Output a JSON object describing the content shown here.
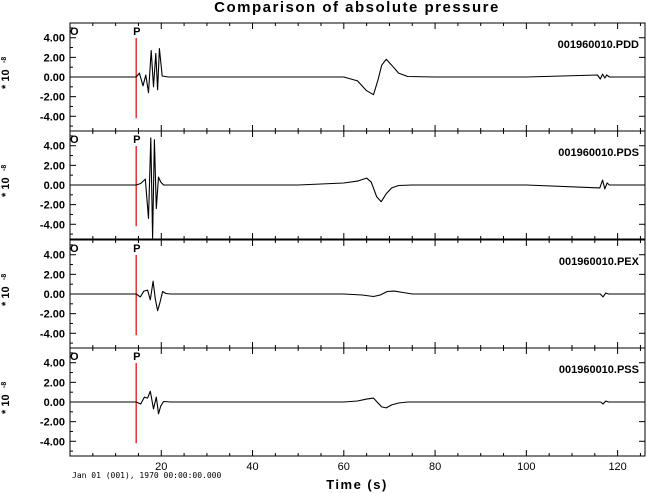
{
  "chart_data": {
    "type": "line",
    "title": "Comparison of absolute pressure",
    "xlabel": "Time (s)",
    "xlim": [
      0,
      126
    ],
    "x_ticks": [
      20,
      40,
      60,
      80,
      100,
      120
    ],
    "x_tick_labels": [
      "20",
      "40",
      "60",
      "80",
      "100",
      "120"
    ],
    "date_label": "Jan 01 (001), 1970 00:00:00.000",
    "ylabel": "* 10",
    "ylabel_exponent": "-8",
    "ylim": [
      -5.5,
      5.5
    ],
    "y_ticks": [
      4,
      2,
      0,
      -2,
      -4
    ],
    "y_tick_labels": [
      "4.00",
      "2.00",
      "0.00",
      "-2.00",
      "-4.00"
    ],
    "grid": false,
    "markers": [
      {
        "label": "O",
        "time": 0,
        "color": "#000000"
      },
      {
        "label": "P",
        "time": 14.5,
        "color": "#dd0000"
      }
    ],
    "panels": [
      {
        "name": "001960010.PDD",
        "x": [
          0,
          14.5,
          15.2,
          16.0,
          16.6,
          17.2,
          17.8,
          18.3,
          18.8,
          19.2,
          19.6,
          20.2,
          21.5,
          30,
          50,
          60,
          63,
          65,
          66.5,
          67.5,
          68.3,
          69.3,
          70.5,
          72,
          74,
          80,
          100,
          115.6,
          116.2,
          116.7,
          117.2,
          117.6,
          118.2,
          126
        ],
        "y": [
          0,
          0,
          0.4,
          -0.9,
          0.2,
          -1.6,
          2.7,
          -1.0,
          2.4,
          -1.3,
          2.9,
          0.1,
          0,
          0,
          0,
          0,
          -0.4,
          -1.4,
          -1.8,
          -0.3,
          1.2,
          1.8,
          1.2,
          0.4,
          0.05,
          0,
          0,
          0.2,
          -0.2,
          0.3,
          -0.1,
          0.2,
          0,
          0
        ]
      },
      {
        "name": "001960010.PDS",
        "x": [
          0,
          14.5,
          15.5,
          16.5,
          17.2,
          17.7,
          18.1,
          18.5,
          18.9,
          19.4,
          19.9,
          20.5,
          22,
          30,
          50,
          60,
          63,
          65,
          66,
          67.2,
          68.2,
          69.3,
          70.5,
          72,
          75,
          80,
          100,
          116.1,
          116.7,
          117.2,
          117.7,
          118.2,
          126
        ],
        "y": [
          0,
          0,
          0.15,
          0.6,
          -3.4,
          4.8,
          -5.4,
          4.6,
          -2.4,
          0.8,
          0.3,
          0,
          0,
          0,
          0,
          0.2,
          0.4,
          0.7,
          0.3,
          -1.2,
          -1.7,
          -0.9,
          -0.3,
          -0.05,
          0,
          0,
          0,
          -0.3,
          0.5,
          -0.4,
          0.2,
          0,
          0
        ]
      },
      {
        "name": "001960010.PEX",
        "x": [
          0,
          14.5,
          15.4,
          16.2,
          17.0,
          17.6,
          18.2,
          18.7,
          19.2,
          19.7,
          20.3,
          21,
          22,
          30,
          50,
          60,
          64,
          66.5,
          68,
          69.5,
          71,
          73,
          75,
          80,
          100,
          116.2,
          116.8,
          117.4,
          118,
          126
        ],
        "y": [
          0,
          0,
          -0.3,
          0.3,
          0.4,
          -0.6,
          1.3,
          -0.5,
          -1.7,
          -0.9,
          0.25,
          0.05,
          0,
          0,
          0,
          0,
          -0.1,
          -0.25,
          -0.1,
          0.25,
          0.3,
          0.15,
          0,
          0,
          0,
          0,
          -0.3,
          0.1,
          0,
          0
        ]
      },
      {
        "name": "001960010.PSS",
        "x": [
          0,
          14.5,
          15.5,
          16.3,
          17.0,
          17.6,
          18.3,
          18.9,
          19.4,
          19.9,
          20.5,
          22,
          30,
          50,
          60,
          63,
          65,
          66.5,
          67.5,
          68.3,
          69.3,
          70.5,
          72,
          74,
          80,
          100,
          116.3,
          116.8,
          117.4,
          118,
          126
        ],
        "y": [
          0,
          0,
          -0.2,
          0.5,
          0.4,
          1.1,
          -0.7,
          0.5,
          -1.2,
          -0.4,
          0.05,
          0,
          0,
          0,
          0,
          0.1,
          0.3,
          0.4,
          -0.1,
          -0.5,
          -0.6,
          -0.3,
          -0.1,
          0,
          0,
          0,
          0,
          -0.2,
          0.1,
          0,
          0
        ]
      }
    ]
  }
}
